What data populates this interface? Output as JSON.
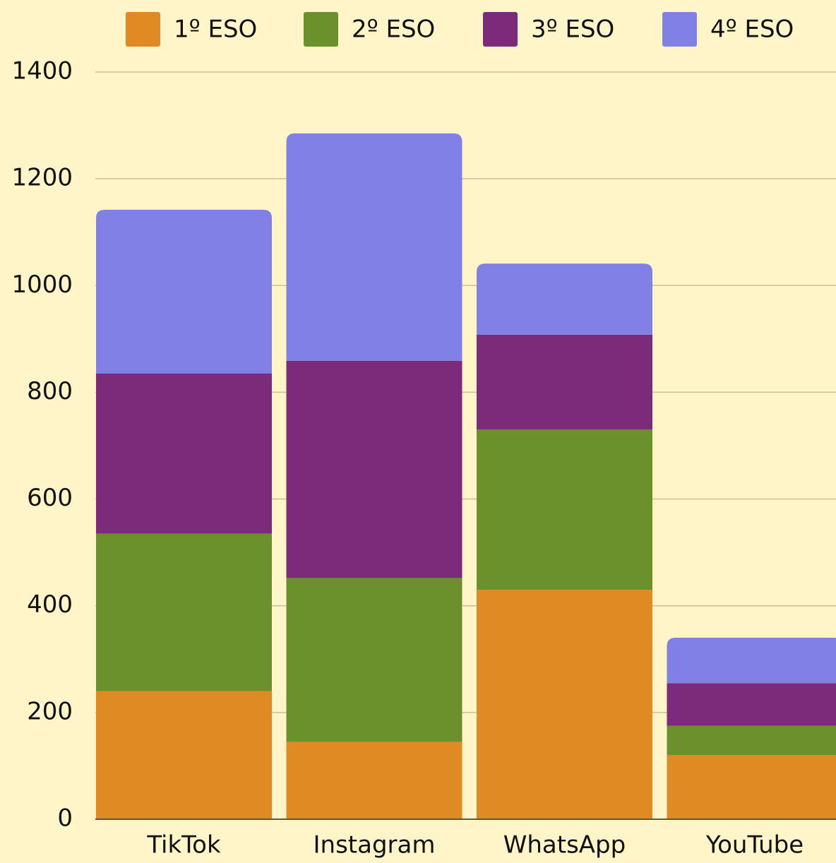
{
  "chart_data": {
    "type": "stacked-bar",
    "categories": [
      "TikTok",
      "Instagram",
      "WhatsApp",
      "YouTube"
    ],
    "series": [
      {
        "name": "1º ESO",
        "color": "#e08a23",
        "values": [
          240,
          145,
          430,
          120
        ]
      },
      {
        "name": "2º ESO",
        "color": "#6a912c",
        "values": [
          295,
          307,
          300,
          55
        ]
      },
      {
        "name": "3º ESO",
        "color": "#7c2b7b",
        "values": [
          300,
          407,
          178,
          80
        ]
      },
      {
        "name": "4º ESO",
        "color": "#8080e6",
        "values": [
          307,
          426,
          133,
          85
        ]
      }
    ],
    "ylim": [
      0,
      1400
    ],
    "yticks": [
      0,
      200,
      400,
      600,
      800,
      1000,
      1200,
      1400
    ],
    "grid": true,
    "legend": "top"
  }
}
